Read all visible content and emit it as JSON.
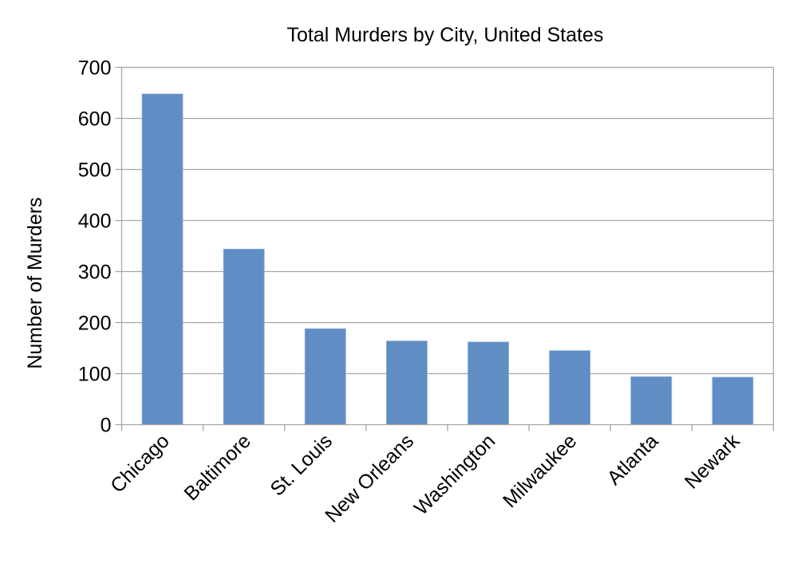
{
  "chart_data": {
    "type": "bar",
    "title": "Total Murders by City, United States",
    "xlabel": "",
    "ylabel": "Number of Murders",
    "categories": [
      "Chicago",
      "Baltimore",
      "St. Louis",
      "New Orleans",
      "Washington",
      "Milwaukee",
      "Atlanta",
      "Newark"
    ],
    "values": [
      648,
      344,
      188,
      164,
      162,
      145,
      94,
      93
    ],
    "ylim": [
      0,
      700
    ],
    "yticks": [
      0,
      100,
      200,
      300,
      400,
      500,
      600,
      700
    ],
    "grid": true,
    "legend": "none",
    "bar_color": "#5f8dc4",
    "grid_color": "#a6a6a6"
  }
}
